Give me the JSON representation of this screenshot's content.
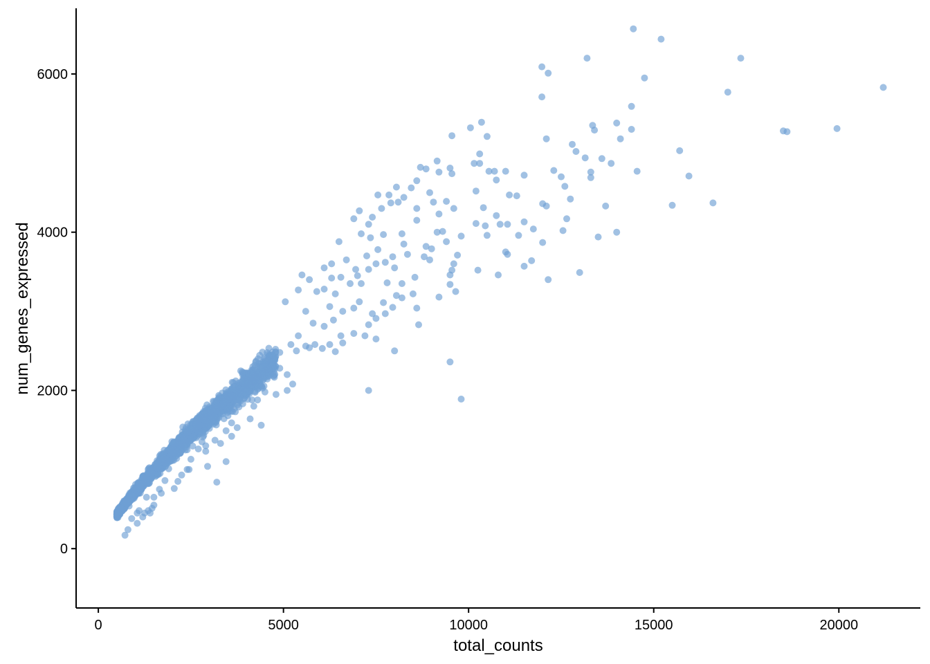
{
  "chart_data": {
    "type": "scatter",
    "xlabel": "total_counts",
    "ylabel": "num_genes_expressed",
    "xlim": [
      -600,
      22200
    ],
    "ylim": [
      -750,
      6830
    ],
    "x_ticks": [
      0,
      5000,
      10000,
      15000,
      20000
    ],
    "x_tick_labels": [
      "0",
      "5000",
      "10000",
      "15000",
      "20000"
    ],
    "y_ticks": [
      0,
      2000,
      4000,
      6000
    ],
    "y_tick_labels": [
      "0",
      "2000",
      "4000",
      "6000"
    ],
    "grid": false,
    "legend": "none",
    "point_color": "#6f9fd4",
    "point_opacity": 0.65,
    "trend_model": {
      "coefficient": 3.8,
      "exponent": 0.76
    },
    "bulk_sample": {
      "count": 2600,
      "x_range": [
        500,
        4800
      ],
      "relative_spread": 0.07
    },
    "points": [
      [
        14450,
        6570
      ],
      [
        15200,
        6440
      ],
      [
        17350,
        6200
      ],
      [
        13200,
        6200
      ],
      [
        11980,
        6090
      ],
      [
        12150,
        6010
      ],
      [
        14750,
        5950
      ],
      [
        11980,
        5710
      ],
      [
        21200,
        5830
      ],
      [
        17000,
        5770
      ],
      [
        14400,
        5590
      ],
      [
        13350,
        5350
      ],
      [
        13400,
        5290
      ],
      [
        14000,
        5380
      ],
      [
        14400,
        5300
      ],
      [
        18500,
        5280
      ],
      [
        18600,
        5270
      ],
      [
        19950,
        5310
      ],
      [
        10350,
        5390
      ],
      [
        10050,
        5320
      ],
      [
        10500,
        5210
      ],
      [
        12100,
        5180
      ],
      [
        14100,
        5180
      ],
      [
        9550,
        5220
      ],
      [
        12800,
        5110
      ],
      [
        12900,
        5020
      ],
      [
        13150,
        4940
      ],
      [
        13600,
        4930
      ],
      [
        15700,
        5030
      ],
      [
        10300,
        4990
      ],
      [
        10150,
        4870
      ],
      [
        10300,
        4870
      ],
      [
        10550,
        4770
      ],
      [
        10700,
        4770
      ],
      [
        11000,
        4770
      ],
      [
        12300,
        4780
      ],
      [
        13300,
        4760
      ],
      [
        13300,
        4690
      ],
      [
        13850,
        4870
      ],
      [
        14550,
        4770
      ],
      [
        15950,
        4710
      ],
      [
        12500,
        4700
      ],
      [
        11500,
        4720
      ],
      [
        9550,
        4740
      ],
      [
        9150,
        4900
      ],
      [
        8700,
        4820
      ],
      [
        8850,
        4800
      ],
      [
        9200,
        4760
      ],
      [
        9500,
        4810
      ],
      [
        11100,
        4470
      ],
      [
        11300,
        4460
      ],
      [
        10750,
        4660
      ],
      [
        12600,
        4580
      ],
      [
        12750,
        4420
      ],
      [
        12000,
        4360
      ],
      [
        12100,
        4330
      ],
      [
        13700,
        4330
      ],
      [
        15500,
        4340
      ],
      [
        16600,
        4370
      ],
      [
        10200,
        4520
      ],
      [
        10400,
        4310
      ],
      [
        10750,
        4210
      ],
      [
        10200,
        4110
      ],
      [
        10450,
        4080
      ],
      [
        10850,
        4100
      ],
      [
        11050,
        4100
      ],
      [
        11500,
        4130
      ],
      [
        11750,
        4040
      ],
      [
        12650,
        4170
      ],
      [
        12550,
        4020
      ],
      [
        13500,
        3940
      ],
      [
        14000,
        4000
      ],
      [
        11350,
        3960
      ],
      [
        11000,
        3750
      ],
      [
        11050,
        3720
      ],
      [
        11500,
        3570
      ],
      [
        11700,
        3640
      ],
      [
        12000,
        3870
      ],
      [
        10800,
        3460
      ],
      [
        10250,
        3520
      ],
      [
        12150,
        3400
      ],
      [
        13000,
        3490
      ],
      [
        10500,
        3960
      ],
      [
        9800,
        3950
      ],
      [
        9550,
        3520
      ],
      [
        9500,
        3460
      ],
      [
        9500,
        3340
      ],
      [
        9600,
        3600
      ],
      [
        9200,
        3180
      ],
      [
        9650,
        3250
      ],
      [
        8850,
        3820
      ],
      [
        9000,
        3790
      ],
      [
        9700,
        3710
      ],
      [
        9400,
        3880
      ],
      [
        9300,
        4010
      ],
      [
        9150,
        4000
      ],
      [
        8600,
        4650
      ],
      [
        8450,
        4560
      ],
      [
        8250,
        4440
      ],
      [
        8050,
        4570
      ],
      [
        7900,
        4370
      ],
      [
        7850,
        4470
      ],
      [
        7550,
        4470
      ],
      [
        8100,
        4380
      ],
      [
        8600,
        4300
      ],
      [
        8950,
        4500
      ],
      [
        9400,
        4390
      ],
      [
        9050,
        4380
      ],
      [
        9600,
        4300
      ],
      [
        9200,
        4230
      ],
      [
        7400,
        4190
      ],
      [
        7650,
        4300
      ],
      [
        7050,
        4270
      ],
      [
        6900,
        4170
      ],
      [
        7300,
        4100
      ],
      [
        7100,
        3980
      ],
      [
        7350,
        3930
      ],
      [
        7700,
        3970
      ],
      [
        8200,
        3980
      ],
      [
        8600,
        4150
      ],
      [
        8250,
        3850
      ],
      [
        8350,
        3720
      ],
      [
        8800,
        3690
      ],
      [
        8950,
        3650
      ],
      [
        7750,
        3620
      ],
      [
        7950,
        3690
      ],
      [
        7300,
        3530
      ],
      [
        6950,
        3530
      ],
      [
        7500,
        3600
      ],
      [
        7000,
        3450
      ],
      [
        6550,
        3430
      ],
      [
        7800,
        3360
      ],
      [
        8200,
        3350
      ],
      [
        8550,
        3430
      ],
      [
        8500,
        3220
      ],
      [
        8600,
        3040
      ],
      [
        8650,
        2830
      ],
      [
        8050,
        3200
      ],
      [
        8200,
        3170
      ],
      [
        7950,
        3050
      ],
      [
        7700,
        3110
      ],
      [
        7750,
        2970
      ],
      [
        7400,
        2970
      ],
      [
        7500,
        2910
      ],
      [
        7300,
        2830
      ],
      [
        8000,
        2500
      ],
      [
        7500,
        2650
      ],
      [
        6900,
        2720
      ],
      [
        6550,
        2690
      ],
      [
        7200,
        2690
      ],
      [
        6250,
        2580
      ],
      [
        5700,
        2540
      ],
      [
        5600,
        2560
      ],
      [
        5850,
        2580
      ],
      [
        6050,
        2530
      ],
      [
        6600,
        2600
      ],
      [
        6400,
        2490
      ],
      [
        6100,
        2810
      ],
      [
        6350,
        2890
      ],
      [
        6250,
        3060
      ],
      [
        5800,
        2850
      ],
      [
        5600,
        3000
      ],
      [
        5400,
        2690
      ],
      [
        5200,
        2580
      ],
      [
        5350,
        2500
      ],
      [
        4900,
        2480
      ],
      [
        4700,
        2450
      ],
      [
        4550,
        2380
      ],
      [
        4450,
        2300
      ],
      [
        4300,
        2230
      ],
      [
        4200,
        2150
      ],
      [
        4000,
        2020
      ],
      [
        4600,
        2180
      ],
      [
        4900,
        2280
      ],
      [
        5100,
        2200
      ],
      [
        5250,
        2080
      ],
      [
        5100,
        2000
      ],
      [
        4400,
        2050
      ],
      [
        4500,
        1980
      ],
      [
        4150,
        1880
      ],
      [
        4200,
        1800
      ],
      [
        4300,
        1880
      ],
      [
        4800,
        1950
      ],
      [
        3900,
        1830
      ],
      [
        3700,
        1730
      ],
      [
        3750,
        1530
      ],
      [
        4100,
        1640
      ],
      [
        4400,
        1560
      ],
      [
        3500,
        1680
      ],
      [
        3450,
        1490
      ],
      [
        3600,
        1590
      ],
      [
        3300,
        1330
      ],
      [
        3150,
        1370
      ],
      [
        3600,
        1420
      ],
      [
        3000,
        1520
      ],
      [
        3100,
        1650
      ],
      [
        2800,
        1350
      ],
      [
        2700,
        1480
      ],
      [
        2900,
        1230
      ],
      [
        2500,
        1130
      ],
      [
        2700,
        1260
      ],
      [
        2400,
        1000
      ],
      [
        2950,
        1040
      ],
      [
        3200,
        840
      ],
      [
        2250,
        930
      ],
      [
        2450,
        1000
      ],
      [
        2150,
        850
      ],
      [
        1800,
        860
      ],
      [
        2050,
        760
      ],
      [
        2900,
        1300
      ],
      [
        2650,
        1540
      ],
      [
        2400,
        1250
      ],
      [
        1900,
        1010
      ],
      [
        1650,
        750
      ],
      [
        1700,
        700
      ],
      [
        1500,
        550
      ],
      [
        1450,
        510
      ],
      [
        1350,
        480
      ],
      [
        1250,
        450
      ],
      [
        1100,
        480
      ],
      [
        1050,
        450
      ],
      [
        1400,
        450
      ],
      [
        900,
        380
      ],
      [
        800,
        240
      ],
      [
        720,
        170
      ],
      [
        1050,
        320
      ],
      [
        1200,
        400
      ],
      [
        1500,
        650
      ],
      [
        1300,
        650
      ],
      [
        3450,
        1100
      ],
      [
        2850,
        1700
      ],
      [
        9800,
        1890
      ],
      [
        9500,
        2360
      ],
      [
        7300,
        2000
      ],
      [
        5700,
        3400
      ],
      [
        5400,
        3270
      ],
      [
        5050,
        3120
      ],
      [
        6100,
        3280
      ],
      [
        6400,
        3220
      ],
      [
        6800,
        3350
      ],
      [
        6100,
        3550
      ],
      [
        6700,
        3650
      ],
      [
        7250,
        3700
      ],
      [
        7550,
        3780
      ],
      [
        8000,
        3550
      ],
      [
        7050,
        3120
      ],
      [
        6900,
        3040
      ],
      [
        6600,
        3000
      ],
      [
        5500,
        3460
      ],
      [
        6300,
        3600
      ],
      [
        7100,
        3350
      ],
      [
        6500,
        3880
      ],
      [
        6300,
        3420
      ],
      [
        5900,
        3250
      ]
    ]
  }
}
